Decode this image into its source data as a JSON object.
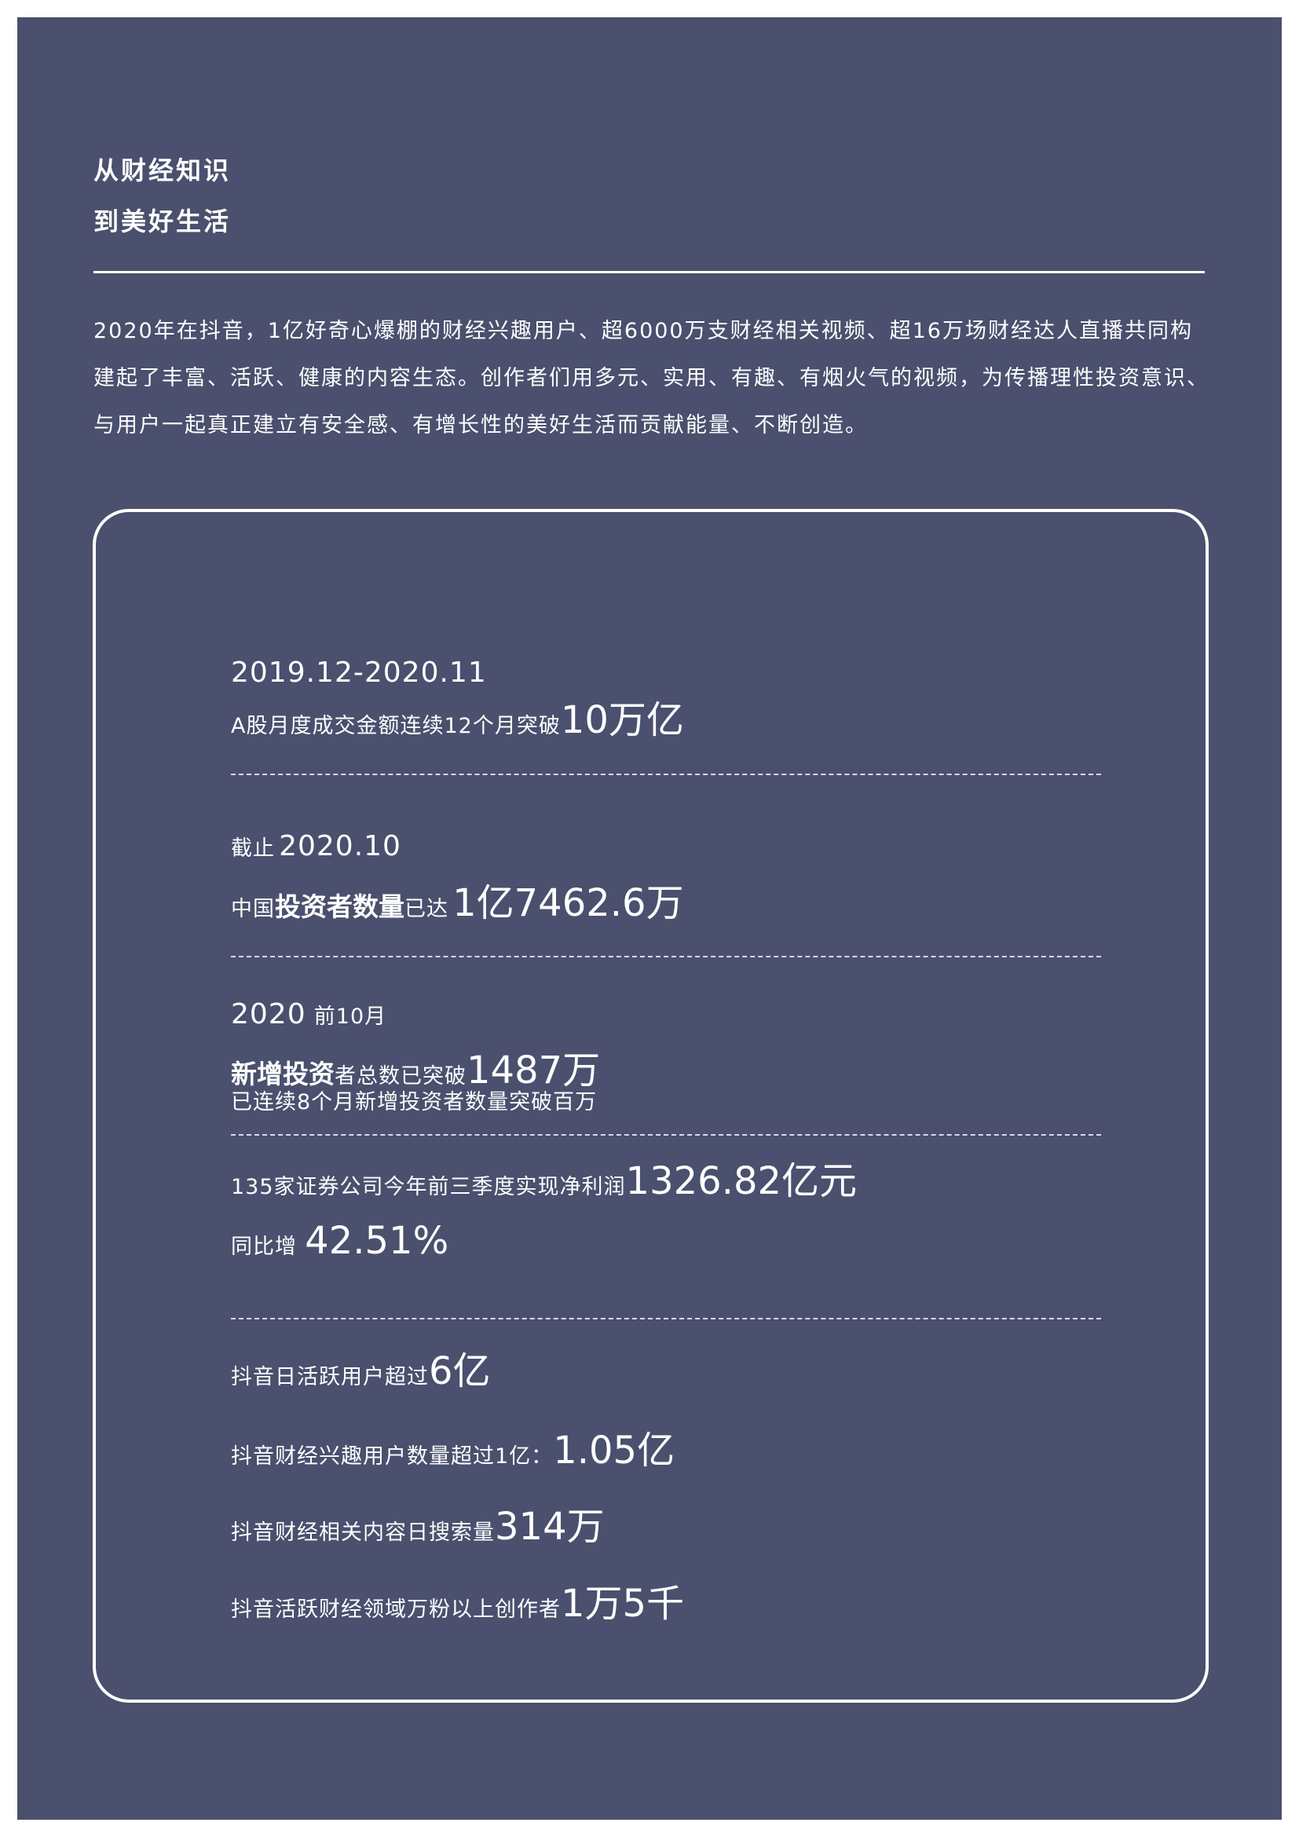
{
  "header": {
    "title_line1": "从财经知识",
    "title_line2": "到美好生活"
  },
  "intro": "2020年在抖音，1亿好奇心爆棚的财经兴趣用户、超6000万支财经相关视频、超16万场财经达人直播共同构建起了丰富、活跃、健康的内容生态。创作者们用多元、实用、有趣、有烟火气的视频，为传播理性投资意识、与用户一起真正建立有安全感、有增长性的美好生活而贡献能量、不断创造。",
  "stats": {
    "a_share": {
      "period": "2019.12-2020.11",
      "text": "A股月度成交金额连续12个月突破",
      "value": "10万亿"
    },
    "investors": {
      "prefix": "截止",
      "date": "2020.10",
      "text_a": "中国",
      "text_b": "投资者数量",
      "text_c": "已达",
      "value": "1亿7462.6万"
    },
    "new_investors": {
      "year": "2020",
      "period": "前10月",
      "text_bold": "新增投资",
      "text": "者总数已突破",
      "value": "1487万",
      "note": "已连续8个月新增投资者数量突破百万"
    },
    "securities": {
      "text": "135家证券公司今年前三季度实现净利润",
      "value": "1326.82亿元",
      "growth_label": "同比增",
      "growth_value": "42.51%"
    },
    "douyin": [
      {
        "text": "抖音日活跃用户超过",
        "value": "6亿"
      },
      {
        "text": "抖音财经兴趣用户数量超过1亿：",
        "value": "1.05亿"
      },
      {
        "text": "抖音财经相关内容日搜索量",
        "value": "314万"
      },
      {
        "text": "抖音活跃财经领域万粉以上创作者",
        "value": "1万5千"
      }
    ]
  }
}
